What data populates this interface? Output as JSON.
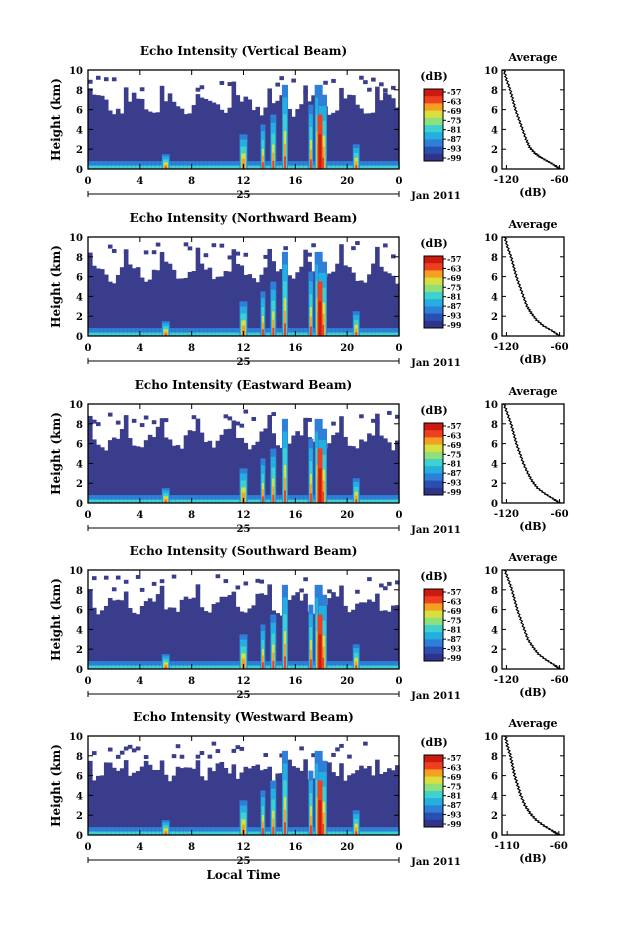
{
  "figure": {
    "xlabel": "Local Time",
    "date_label": "Jan 2011",
    "day_label": "25",
    "cbar_unit": "(dB)",
    "avg_title": "Average",
    "avg_xlabel": "(dB)"
  },
  "colors": {
    "background_echo": "#3a3d8c",
    "colormap": [
      "#30338a",
      "#2a4fb2",
      "#2d7fd8",
      "#25aee0",
      "#3fd0d0",
      "#8fe07a",
      "#d8e040",
      "#f5a020",
      "#ee4020",
      "#cc1a10"
    ]
  },
  "chart_data": [
    {
      "type": "heatmap",
      "title": "Echo Intensity (Vertical Beam)",
      "ylabel": "Height (km)",
      "x_ticks": [
        "0",
        "4",
        "8",
        "12",
        "16",
        "20",
        "0"
      ],
      "x_tick_values": [
        0,
        4,
        8,
        12,
        16,
        20,
        24
      ],
      "xlim": [
        0,
        24
      ],
      "y_ticks": [
        "0",
        "2",
        "4",
        "6",
        "8",
        "10"
      ],
      "ylim": [
        0,
        10
      ],
      "cbar_ticks": [
        "-57",
        "-63",
        "-69",
        "-75",
        "-81",
        "-87",
        "-93",
        "-99"
      ],
      "avg": {
        "x_ticks": [
          "-120",
          "-60"
        ],
        "xlim": [
          -125,
          -55
        ],
        "profile": [
          [
            -60,
            0
          ],
          [
            -66,
            0.4
          ],
          [
            -74,
            0.8
          ],
          [
            -82,
            1.2
          ],
          [
            -88,
            1.6
          ],
          [
            -94,
            2.2
          ],
          [
            -98,
            3
          ],
          [
            -102,
            4
          ],
          [
            -106,
            5
          ],
          [
            -110,
            6
          ],
          [
            -113,
            7
          ],
          [
            -116,
            8
          ],
          [
            -120,
            9
          ],
          [
            -123,
            10
          ]
        ]
      }
    },
    {
      "type": "heatmap",
      "title": "Echo Intensity (Northward Beam)",
      "ylabel": "Height (km)",
      "x_ticks": [
        "0",
        "4",
        "8",
        "12",
        "16",
        "20",
        "0"
      ],
      "x_tick_values": [
        0,
        4,
        8,
        12,
        16,
        20,
        24
      ],
      "xlim": [
        0,
        24
      ],
      "y_ticks": [
        "0",
        "2",
        "4",
        "6",
        "8",
        "10"
      ],
      "ylim": [
        0,
        10
      ],
      "cbar_ticks": [
        "-57",
        "-63",
        "-69",
        "-75",
        "-81",
        "-87",
        "-93",
        "-99"
      ],
      "avg": {
        "x_ticks": [
          "-120",
          "-60"
        ],
        "xlim": [
          -125,
          -55
        ],
        "profile": [
          [
            -60,
            0
          ],
          [
            -68,
            0.5
          ],
          [
            -78,
            1
          ],
          [
            -86,
            1.6
          ],
          [
            -92,
            2.3
          ],
          [
            -97,
            3
          ],
          [
            -101,
            4
          ],
          [
            -105,
            5
          ],
          [
            -109,
            6
          ],
          [
            -112,
            7
          ],
          [
            -115,
            8
          ],
          [
            -119,
            9
          ],
          [
            -122,
            10
          ]
        ]
      }
    },
    {
      "type": "heatmap",
      "title": "Echo Intensity (Eastward Beam)",
      "ylabel": "Height (km)",
      "x_ticks": [
        "0",
        "4",
        "8",
        "12",
        "16",
        "20",
        "0"
      ],
      "x_tick_values": [
        0,
        4,
        8,
        12,
        16,
        20,
        24
      ],
      "xlim": [
        0,
        24
      ],
      "y_ticks": [
        "0",
        "2",
        "4",
        "6",
        "8",
        "10"
      ],
      "ylim": [
        0,
        10
      ],
      "cbar_ticks": [
        "-57",
        "-63",
        "-69",
        "-75",
        "-81",
        "-87",
        "-93",
        "-99"
      ],
      "avg": {
        "x_ticks": [
          "-120",
          "-60"
        ],
        "xlim": [
          -125,
          -55
        ],
        "profile": [
          [
            -60,
            0
          ],
          [
            -67,
            0.4
          ],
          [
            -76,
            0.9
          ],
          [
            -85,
            1.5
          ],
          [
            -91,
            2.2
          ],
          [
            -96,
            3
          ],
          [
            -101,
            4
          ],
          [
            -105,
            5
          ],
          [
            -109,
            6
          ],
          [
            -112,
            7
          ],
          [
            -115,
            8
          ],
          [
            -119,
            9
          ],
          [
            -123,
            10
          ]
        ]
      }
    },
    {
      "type": "heatmap",
      "title": "Echo Intensity (Southward Beam)",
      "ylabel": "Height (km)",
      "x_ticks": [
        "0",
        "4",
        "8",
        "12",
        "16",
        "20",
        "0"
      ],
      "x_tick_values": [
        0,
        4,
        8,
        12,
        16,
        20,
        24
      ],
      "xlim": [
        0,
        24
      ],
      "y_ticks": [
        "0",
        "2",
        "4",
        "6",
        "8",
        "10"
      ],
      "ylim": [
        0,
        10
      ],
      "cbar_ticks": [
        "-57",
        "-63",
        "-69",
        "-75",
        "-81",
        "-87",
        "-93",
        "-99"
      ],
      "avg": {
        "x_ticks": [
          "-120",
          "-60"
        ],
        "xlim": [
          -125,
          -55
        ],
        "profile": [
          [
            -60,
            0
          ],
          [
            -66,
            0.4
          ],
          [
            -75,
            0.9
          ],
          [
            -84,
            1.5
          ],
          [
            -90,
            2.2
          ],
          [
            -96,
            3
          ],
          [
            -100,
            4
          ],
          [
            -104,
            5
          ],
          [
            -108,
            6
          ],
          [
            -111,
            7
          ],
          [
            -114,
            8
          ],
          [
            -118,
            9
          ],
          [
            -122,
            10
          ]
        ]
      }
    },
    {
      "type": "heatmap",
      "title": "Echo Intensity (Westward Beam)",
      "ylabel": "Height (km)",
      "x_ticks": [
        "0",
        "4",
        "8",
        "12",
        "16",
        "20",
        "0"
      ],
      "x_tick_values": [
        0,
        4,
        8,
        12,
        16,
        20,
        24
      ],
      "xlim": [
        0,
        24
      ],
      "y_ticks": [
        "0",
        "2",
        "4",
        "6",
        "8",
        "10"
      ],
      "ylim": [
        0,
        10
      ],
      "cbar_ticks": [
        "-57",
        "-63",
        "-69",
        "-75",
        "-81",
        "-87",
        "-93",
        "-99"
      ],
      "avg": {
        "x_ticks": [
          "-110",
          "-60"
        ],
        "xlim": [
          -115,
          -55
        ],
        "profile": [
          [
            -60,
            0
          ],
          [
            -66,
            0.4
          ],
          [
            -74,
            0.9
          ],
          [
            -82,
            1.5
          ],
          [
            -88,
            2.2
          ],
          [
            -93,
            3
          ],
          [
            -97,
            4
          ],
          [
            -100,
            5
          ],
          [
            -103,
            6
          ],
          [
            -105,
            7
          ],
          [
            -107,
            8
          ],
          [
            -110,
            9
          ],
          [
            -112,
            10
          ]
        ]
      }
    }
  ]
}
